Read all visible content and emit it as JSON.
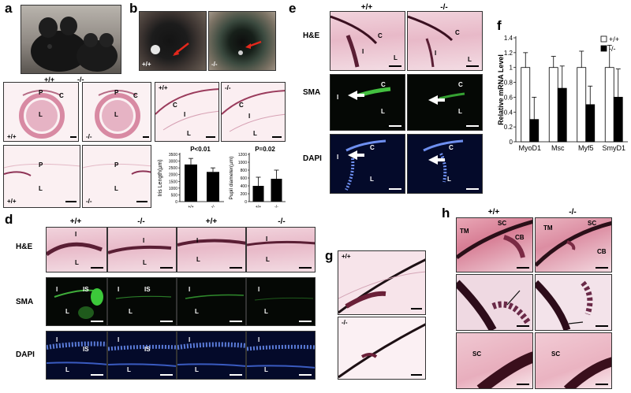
{
  "panel_labels": [
    "a",
    "b",
    "c",
    "d",
    "e",
    "f",
    "g",
    "h"
  ],
  "genotypes": {
    "wt": "+/+",
    "ko": "-/-"
  },
  "panel_a": {
    "label_wt": "+/+",
    "label_ko": "-/-"
  },
  "panel_b": {
    "label_wt": "+/+",
    "label_ko": "-/-"
  },
  "panel_c": {
    "tags": {
      "P": "P",
      "C": "C",
      "I": "I",
      "L": "L"
    },
    "iris_chart": {
      "ylabel": "Iris Length(µm)",
      "pvalue": "P<0.01",
      "yticks": [
        "0",
        "500",
        "1000",
        "1500",
        "2000",
        "2500",
        "3000",
        "3500"
      ]
    },
    "pupil_chart": {
      "ylabel": "Pupil diameter(µm)",
      "pvalue": "P=0.02",
      "yticks": [
        "0",
        "200",
        "400",
        "600",
        "800",
        "1000",
        "1200"
      ]
    }
  },
  "panel_d": {
    "rows": [
      "H&E",
      "SMA",
      "DAPI"
    ],
    "cols": [
      "+/+",
      "-/-",
      "+/+",
      "-/-"
    ],
    "tag_is": "IS"
  },
  "panel_e": {
    "rows": [
      "H&E",
      "SMA",
      "DAPI"
    ],
    "cols": [
      "+/+",
      "-/-"
    ]
  },
  "panel_g": {
    "label_wt": "+/+",
    "label_ko": "-/-"
  },
  "panel_h": {
    "cols": [
      "+/+",
      "-/-"
    ],
    "tags": {
      "TM": "TM",
      "SC": "SC",
      "CB": "CB"
    }
  },
  "chart_data": [
    {
      "type": "bar",
      "panel": "c",
      "ylabel": "Iris Length(µm)",
      "categories": [
        "+/+",
        "-/-"
      ],
      "values": [
        2750,
        2200
      ],
      "errors": [
        450,
        300
      ],
      "ylim": [
        0,
        3500
      ],
      "yticks": [
        0,
        500,
        1000,
        1500,
        2000,
        2500,
        3000,
        3500
      ],
      "annotation": "P<0.01",
      "color": "#000000"
    },
    {
      "type": "bar",
      "panel": "c",
      "ylabel": "Pupil diameter(µm)",
      "categories": [
        "+/+",
        "-/-"
      ],
      "values": [
        400,
        580
      ],
      "errors": [
        220,
        220
      ],
      "ylim": [
        0,
        1200
      ],
      "yticks": [
        0,
        200,
        400,
        600,
        800,
        1000,
        1200
      ],
      "annotation": "P=0.02",
      "color": "#000000"
    },
    {
      "type": "bar",
      "panel": "f",
      "ylabel": "Relative mRNA Level",
      "categories": [
        "MyoD1",
        "Msc",
        "Myf5",
        "SmyD1"
      ],
      "series": [
        {
          "name": "+/+",
          "values": [
            1.0,
            1.0,
            1.0,
            1.0
          ],
          "errors": [
            0.2,
            0.15,
            0.22,
            0.3
          ],
          "color": "#ffffff"
        },
        {
          "name": "-/-",
          "values": [
            0.3,
            0.72,
            0.5,
            0.6
          ],
          "errors": [
            0.3,
            0.3,
            0.25,
            0.38
          ],
          "color": "#000000"
        }
      ],
      "ylim": [
        0,
        1.4
      ],
      "yticks": [
        0,
        0.2,
        0.4,
        0.6,
        0.8,
        1,
        1.2,
        1.4
      ],
      "legend": "top-right"
    }
  ]
}
